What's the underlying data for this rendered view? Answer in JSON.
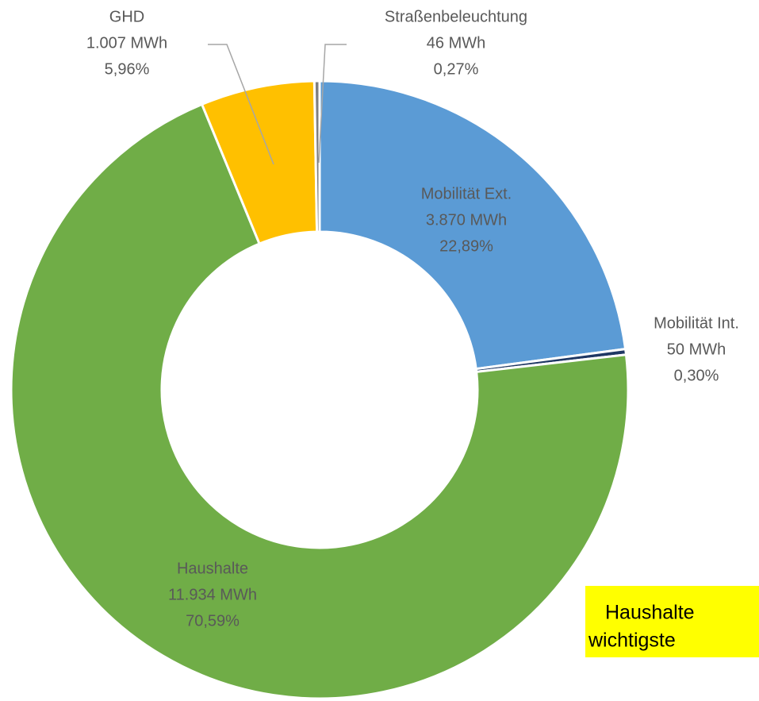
{
  "chart_data": {
    "type": "donut",
    "categories": [
      "Mobilität Ext.",
      "Mobilität Int.",
      "Haushalte",
      "GHD",
      "Straßenbeleuchtung"
    ],
    "values": [
      3870,
      50,
      11934,
      1007,
      46
    ],
    "value_labels": [
      "3.870 MWh",
      "50 MWh",
      "11.934 MWh",
      "1.007 MWh",
      "46 MWh"
    ],
    "percents": [
      22.89,
      0.3,
      70.59,
      5.96,
      0.27
    ],
    "percent_labels": [
      "22,89%",
      "0,30%",
      "70,59%",
      "5,96%",
      "0,27%"
    ],
    "colors": [
      "#5b9bd5",
      "#1f3864",
      "#70ad47",
      "#ffc000",
      "#7f7f7f"
    ],
    "annotation": [
      "Haushalte",
      "wichtigste"
    ]
  }
}
